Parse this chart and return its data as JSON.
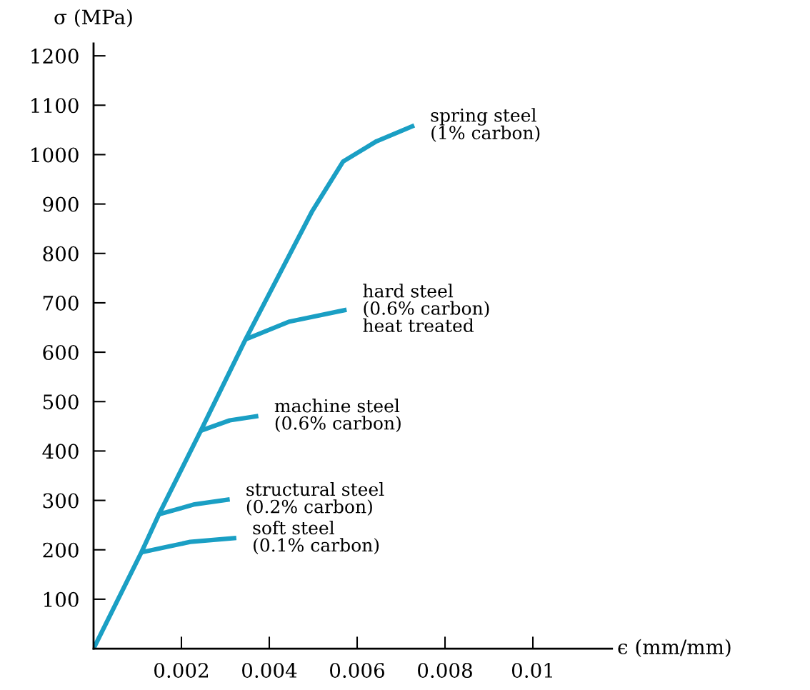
{
  "chart_data": {
    "type": "line",
    "xlabel": "ϵ (mm/mm)",
    "ylabel": "σ (MPa)",
    "xlim": [
      0,
      0.0118
    ],
    "ylim": [
      0,
      1225
    ],
    "xticks": [
      0.002,
      0.004,
      0.006,
      0.008,
      0.01
    ],
    "yticks": [
      100,
      200,
      300,
      400,
      500,
      600,
      700,
      800,
      900,
      1000,
      1100,
      1200
    ],
    "grid": false,
    "legend": false,
    "marker": "none",
    "line_style": "solid",
    "series": [
      {
        "name": "spring steel\n(1% carbon)",
        "color": "#1a9fc4",
        "x": [
          0,
          0.00109,
          0.00149,
          0.00244,
          0.00346,
          0.00498,
          0.00568,
          0.00644,
          0.0073
        ],
        "values": [
          0,
          195,
          272,
          441,
          626,
          886,
          986,
          1027,
          1059
        ]
      },
      {
        "name": "hard steel\n(0.6% carbon)\nheat treated",
        "color": "#1a9fc4",
        "x": [
          0.00346,
          0.00446,
          0.00576
        ],
        "values": [
          626,
          662,
          686
        ]
      },
      {
        "name": "machine steel\n(0.6% carbon)",
        "color": "#1a9fc4",
        "x": [
          0.00244,
          0.0031,
          0.00375
        ],
        "values": [
          441,
          462,
          471
        ]
      },
      {
        "name": "structural steel\n(0.2% carbon)",
        "color": "#1a9fc4",
        "x": [
          0.00149,
          0.0023,
          0.0031
        ],
        "values": [
          272,
          292,
          302
        ]
      },
      {
        "name": "soft steel\n(0.1% carbon)",
        "color": "#1a9fc4",
        "x": [
          0.00109,
          0.0022,
          0.00325
        ],
        "values": [
          195,
          216,
          224
        ]
      }
    ]
  }
}
